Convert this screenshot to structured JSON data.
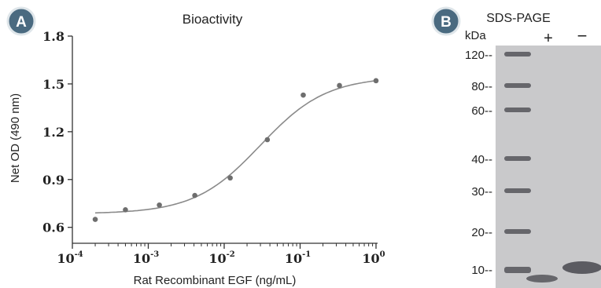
{
  "panel_a": {
    "badge": "A",
    "title": "Bioactivity",
    "xlabel": "Rat Recombinant EGF (ng/mL)",
    "ylabel": "Net OD (490 nm)"
  },
  "panel_b": {
    "badge": "B",
    "title": "SDS-PAGE",
    "unit_label": "kDa",
    "lane_plus": "+",
    "lane_minus": "−",
    "markers": [
      {
        "label": "120--",
        "kda": 120
      },
      {
        "label": "80--",
        "kda": 80
      },
      {
        "label": "60--",
        "kda": 60
      },
      {
        "label": "40--",
        "kda": 40
      },
      {
        "label": "30--",
        "kda": 30
      },
      {
        "label": "20--",
        "kda": 20
      },
      {
        "label": "10--",
        "kda": 10
      }
    ]
  },
  "colors": {
    "badge_fill": "#4a6a80",
    "point": "#6e6e6e",
    "curve": "#8a8a8a",
    "gel_bg": "#c9c9cb",
    "band": "#55555a"
  },
  "chart_data": {
    "type": "scatter",
    "title": "Bioactivity",
    "xlabel": "Rat Recombinant EGF (ng/mL)",
    "ylabel": "Net OD (490 nm)",
    "xscale": "log",
    "xlim": [
      0.0001,
      1
    ],
    "ylim": [
      0.5,
      1.8
    ],
    "x_ticks": [
      {
        "base": "10",
        "exp": "-4",
        "value": 0.0001
      },
      {
        "base": "10",
        "exp": "-3",
        "value": 0.001
      },
      {
        "base": "10",
        "exp": "-2",
        "value": 0.01
      },
      {
        "base": "10",
        "exp": "-1",
        "value": 0.1
      },
      {
        "base": "10",
        "exp": "0",
        "value": 1
      }
    ],
    "y_ticks": [
      {
        "label": "0.6",
        "value": 0.6
      },
      {
        "label": "0.9",
        "value": 0.9
      },
      {
        "label": "1.2",
        "value": 1.2
      },
      {
        "label": "1.5",
        "value": 1.5
      },
      {
        "label": "1.8",
        "value": 1.8
      }
    ],
    "points": [
      {
        "x": 0.0002,
        "y": 0.65
      },
      {
        "x": 0.0005,
        "y": 0.71
      },
      {
        "x": 0.0014,
        "y": 0.74
      },
      {
        "x": 0.0041,
        "y": 0.8
      },
      {
        "x": 0.012,
        "y": 0.91
      },
      {
        "x": 0.037,
        "y": 1.15
      },
      {
        "x": 0.11,
        "y": 1.43
      },
      {
        "x": 0.33,
        "y": 1.49
      },
      {
        "x": 1,
        "y": 1.52
      }
    ],
    "fit_curve": "4PL",
    "grid": false
  }
}
